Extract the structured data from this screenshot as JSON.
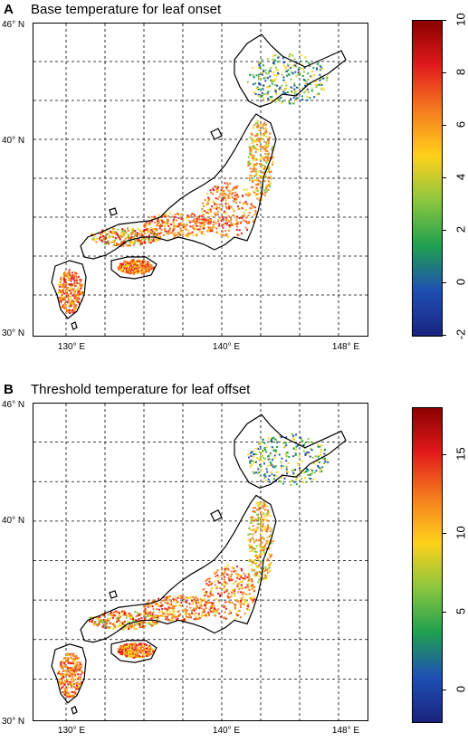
{
  "panels": [
    {
      "letter": "A",
      "title": "Base temperature for leaf onset",
      "lat_labels": [
        "46° N",
        "40° N",
        "30° N"
      ],
      "lon_labels": [
        "130° E",
        "140° E",
        "148° E"
      ],
      "colorbar": {
        "ticks": [
          "10",
          "8",
          "6",
          "4",
          "2",
          "0",
          "-2"
        ],
        "min": -2,
        "max": 10,
        "colors": [
          "#8b0000",
          "#e31a1c",
          "#f57d20",
          "#ffd11a",
          "#8cc63f",
          "#1fa050",
          "#1f4fb4",
          "#1a237e"
        ]
      }
    },
    {
      "letter": "B",
      "title": "Threshold temperature for leaf offset",
      "lat_labels": [
        "46° N",
        "40° N",
        "30° N"
      ],
      "lon_labels": [
        "130° E",
        "140° E",
        "148° E"
      ],
      "colorbar": {
        "ticks": [
          "15",
          "10",
          "5",
          "0"
        ],
        "min": -2,
        "max": 18,
        "colors": [
          "#8b0000",
          "#e31a1c",
          "#f57d20",
          "#ffd11a",
          "#8cc63f",
          "#1fa050",
          "#1f4fb4",
          "#1a237e"
        ]
      }
    }
  ]
}
